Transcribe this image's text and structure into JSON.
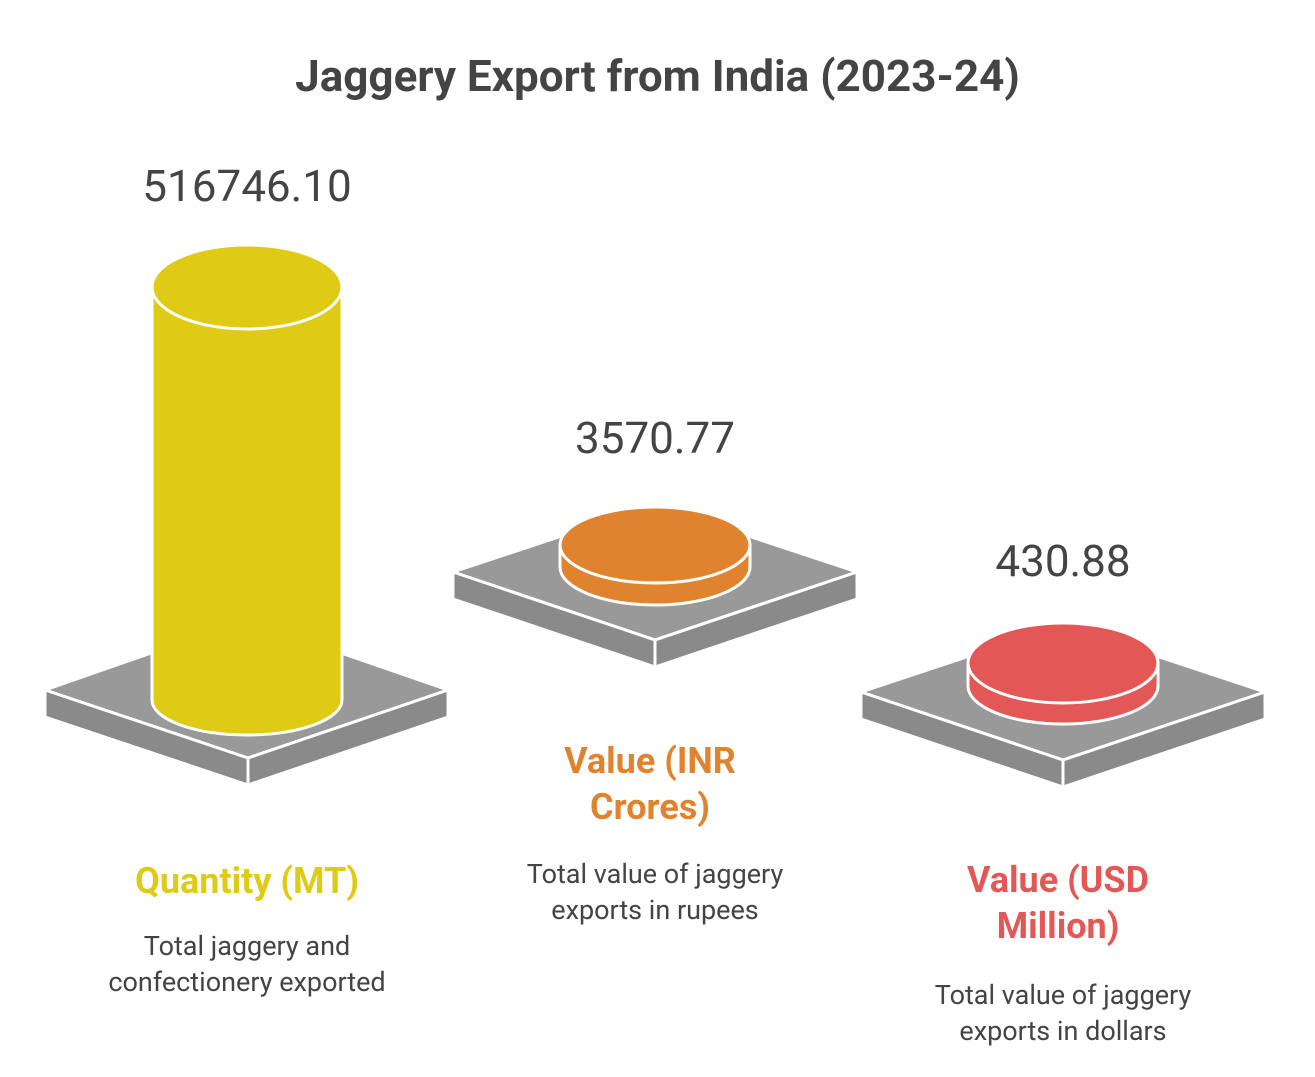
{
  "title": "Jaggery Export from India (2023-24)",
  "items": [
    {
      "value": "516746.10",
      "label": "Quantity (MT)",
      "description": "Total jaggery and confectionery exported"
    },
    {
      "value": "3570.77",
      "label": "Value (INR Crores)",
      "description": "Total value of jaggery exports in rupees"
    },
    {
      "value": "430.88",
      "label": "Value (USD Million)",
      "description": "Total value of jaggery exports in dollars"
    }
  ]
}
